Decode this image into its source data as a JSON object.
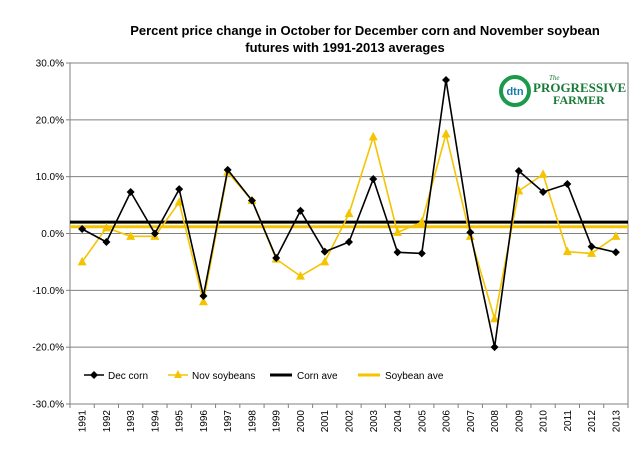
{
  "chart_data": {
    "type": "line",
    "title_line1": "Percent price change in October for December corn and November soybean",
    "title_line2": "futures with 1991-2013 averages",
    "categories": [
      "1991",
      "1992",
      "1993",
      "1994",
      "1995",
      "1996",
      "1997",
      "1998",
      "1999",
      "2000",
      "2001",
      "2002",
      "2003",
      "2004",
      "2005",
      "2006",
      "2007",
      "2008",
      "2009",
      "2010",
      "2011",
      "2012",
      "2013"
    ],
    "y_ticks": [
      "30.0%",
      "20.0%",
      "10.0%",
      "0.0%",
      "-10.0%",
      "-20.0%",
      "-30.0%"
    ],
    "ylim": [
      -30,
      30
    ],
    "grid": true,
    "legend_position": "bottom-left",
    "series": [
      {
        "name": "Dec corn",
        "color": "#000000",
        "marker": "diamond",
        "values": [
          0.8,
          -1.5,
          7.3,
          0.0,
          7.8,
          -11.0,
          11.2,
          5.8,
          -4.3,
          4.0,
          -3.2,
          -1.5,
          9.6,
          -3.3,
          -3.5,
          27.0,
          0.2,
          -20.0,
          11.0,
          7.3,
          8.7,
          -2.3,
          -3.3
        ]
      },
      {
        "name": "Nov soybeans",
        "color": "#f5c400",
        "marker": "triangle",
        "values": [
          -5.0,
          1.0,
          -0.5,
          -0.5,
          5.5,
          -12.0,
          10.8,
          5.8,
          -4.5,
          -7.5,
          -5.0,
          3.5,
          17.0,
          0.2,
          2.0,
          17.5,
          -0.5,
          -15.0,
          7.5,
          10.4,
          -3.2,
          -3.5,
          -0.5
        ]
      },
      {
        "name": "Corn ave",
        "color": "#000000",
        "marker": "none",
        "values": [
          2.0,
          2.0,
          2.0,
          2.0,
          2.0,
          2.0,
          2.0,
          2.0,
          2.0,
          2.0,
          2.0,
          2.0,
          2.0,
          2.0,
          2.0,
          2.0,
          2.0,
          2.0,
          2.0,
          2.0,
          2.0,
          2.0,
          2.0
        ]
      },
      {
        "name": "Soybean ave",
        "color": "#f5c400",
        "marker": "none",
        "values": [
          1.2,
          1.2,
          1.2,
          1.2,
          1.2,
          1.2,
          1.2,
          1.2,
          1.2,
          1.2,
          1.2,
          1.2,
          1.2,
          1.2,
          1.2,
          1.2,
          1.2,
          1.2,
          1.2,
          1.2,
          1.2,
          1.2,
          1.2
        ]
      }
    ]
  },
  "logo": {
    "icon_text": "dtn",
    "line1": "The",
    "line2": "PROGRESSIVE",
    "line3": "FARMER"
  }
}
